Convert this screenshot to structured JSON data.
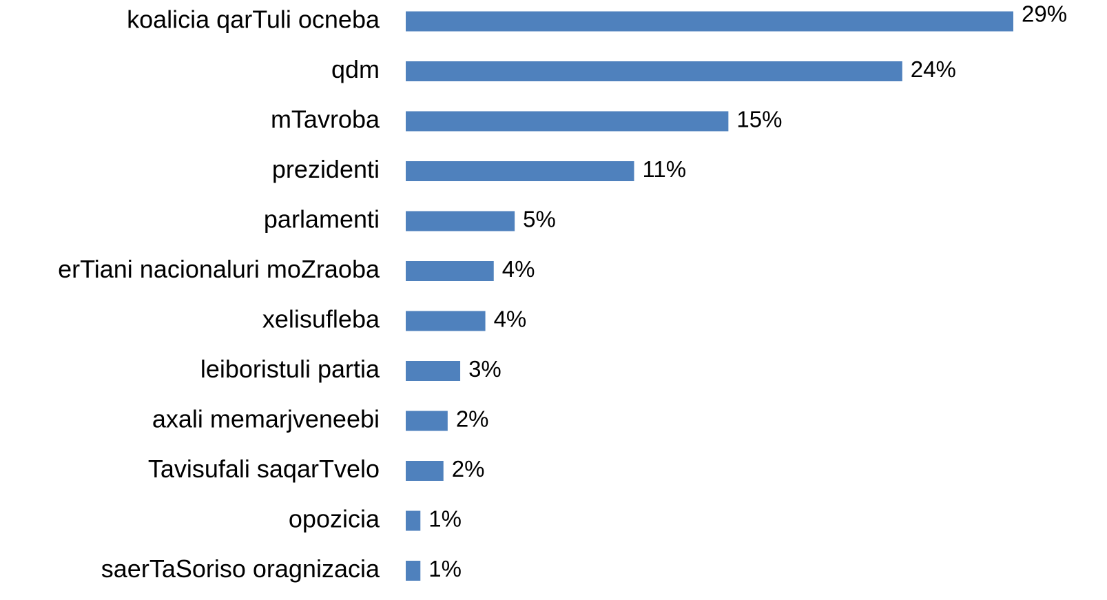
{
  "chart_data": {
    "type": "bar",
    "orientation": "horizontal",
    "categories": [
      "koalicia qarTuli ocneba",
      "qdm",
      "mTavroba",
      "prezidenti",
      "parlamenti",
      "erTiani nacionaluri moZraoba",
      "xelisufleba",
      "leiboristuli partia",
      "axali memarjveneebi",
      "Tavisufali saqarTvelo",
      "opozicia",
      "saerTaSoriso oragnizacia"
    ],
    "values": [
      29,
      23.7,
      15.4,
      10.9,
      5.2,
      4.2,
      3.8,
      2.6,
      2.0,
      1.8,
      0.7,
      0.7
    ],
    "value_labels": [
      "29%",
      "24%",
      "15%",
      "11%",
      "5%",
      "4%",
      "4%",
      "3%",
      "2%",
      "2%",
      "1%",
      "1%"
    ],
    "color": "#4f81bd"
  }
}
